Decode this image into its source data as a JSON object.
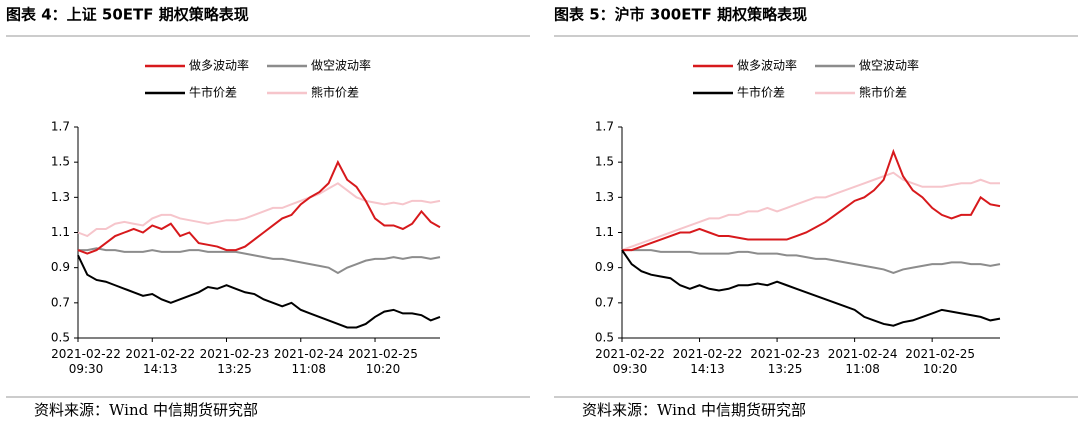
{
  "chart_data": [
    {
      "type": "line",
      "title": "图表 4：上证 50ETF 期权策略表现",
      "source": "资料来源：Wind  中信期货研究部",
      "categories": [
        "2021-02-22\n09:30",
        null,
        null,
        null,
        null,
        null,
        null,
        null,
        "2021-02-22\n14:13",
        null,
        null,
        null,
        null,
        null,
        null,
        null,
        "2021-02-23\n13:25",
        null,
        null,
        null,
        null,
        null,
        null,
        null,
        "2021-02-24\n11:08",
        null,
        null,
        null,
        null,
        null,
        null,
        null,
        "2021-02-25\n10:20",
        null,
        null,
        null,
        null,
        null,
        null,
        null
      ],
      "ylim": [
        0.5,
        1.7
      ],
      "yticks": [
        0.5,
        0.7,
        0.9,
        1.1,
        1.3,
        1.5,
        1.7
      ],
      "series": [
        {
          "name": "做多波动率",
          "color": "#d7191c",
          "values": [
            1.0,
            0.98,
            1.0,
            1.04,
            1.08,
            1.1,
            1.12,
            1.1,
            1.14,
            1.12,
            1.15,
            1.08,
            1.1,
            1.04,
            1.03,
            1.02,
            1.0,
            1.0,
            1.02,
            1.06,
            1.1,
            1.14,
            1.18,
            1.2,
            1.26,
            1.3,
            1.33,
            1.38,
            1.5,
            1.4,
            1.36,
            1.28,
            1.18,
            1.14,
            1.14,
            1.12,
            1.15,
            1.22,
            1.16,
            1.13
          ]
        },
        {
          "name": "做空波动率",
          "color": "#8c8c8c",
          "values": [
            1.0,
            1.0,
            1.01,
            1.0,
            1.0,
            0.99,
            0.99,
            0.99,
            1.0,
            0.99,
            0.99,
            0.99,
            1.0,
            1.0,
            0.99,
            0.99,
            0.99,
            0.99,
            0.98,
            0.97,
            0.96,
            0.95,
            0.95,
            0.94,
            0.93,
            0.92,
            0.91,
            0.9,
            0.87,
            0.9,
            0.92,
            0.94,
            0.95,
            0.95,
            0.96,
            0.95,
            0.96,
            0.96,
            0.95,
            0.96
          ]
        },
        {
          "name": "牛市价差",
          "color": "#000000",
          "values": [
            0.97,
            0.86,
            0.83,
            0.82,
            0.8,
            0.78,
            0.76,
            0.74,
            0.75,
            0.72,
            0.7,
            0.72,
            0.74,
            0.76,
            0.79,
            0.78,
            0.8,
            0.78,
            0.76,
            0.75,
            0.72,
            0.7,
            0.68,
            0.7,
            0.66,
            0.64,
            0.62,
            0.6,
            0.58,
            0.56,
            0.56,
            0.58,
            0.62,
            0.65,
            0.66,
            0.64,
            0.64,
            0.63,
            0.6,
            0.62
          ]
        },
        {
          "name": "熊市价差",
          "color": "#f6c5cb",
          "values": [
            1.1,
            1.08,
            1.12,
            1.12,
            1.15,
            1.16,
            1.15,
            1.14,
            1.18,
            1.2,
            1.2,
            1.18,
            1.17,
            1.16,
            1.15,
            1.16,
            1.17,
            1.17,
            1.18,
            1.2,
            1.22,
            1.24,
            1.24,
            1.26,
            1.28,
            1.3,
            1.32,
            1.35,
            1.38,
            1.34,
            1.3,
            1.28,
            1.27,
            1.26,
            1.27,
            1.26,
            1.28,
            1.28,
            1.27,
            1.28
          ]
        }
      ]
    },
    {
      "type": "line",
      "title": "图表 5：沪市 300ETF 期权策略表现",
      "source": "资料来源：Wind  中信期货研究部",
      "categories": [
        "2021-02-22\n09:30",
        null,
        null,
        null,
        null,
        null,
        null,
        null,
        "2021-02-22\n14:13",
        null,
        null,
        null,
        null,
        null,
        null,
        null,
        "2021-02-23\n13:25",
        null,
        null,
        null,
        null,
        null,
        null,
        null,
        "2021-02-24\n11:08",
        null,
        null,
        null,
        null,
        null,
        null,
        null,
        "2021-02-25\n10:20",
        null,
        null,
        null,
        null,
        null,
        null,
        null
      ],
      "ylim": [
        0.5,
        1.7
      ],
      "yticks": [
        0.5,
        0.7,
        0.9,
        1.1,
        1.3,
        1.5,
        1.7
      ],
      "series": [
        {
          "name": "做多波动率",
          "color": "#d7191c",
          "values": [
            1.0,
            1.0,
            1.02,
            1.04,
            1.06,
            1.08,
            1.1,
            1.1,
            1.12,
            1.1,
            1.08,
            1.08,
            1.07,
            1.06,
            1.06,
            1.06,
            1.06,
            1.06,
            1.08,
            1.1,
            1.13,
            1.16,
            1.2,
            1.24,
            1.28,
            1.3,
            1.34,
            1.4,
            1.56,
            1.42,
            1.34,
            1.3,
            1.24,
            1.2,
            1.18,
            1.2,
            1.2,
            1.3,
            1.26,
            1.25
          ]
        },
        {
          "name": "做空波动率",
          "color": "#8c8c8c",
          "values": [
            1.0,
            1.0,
            1.0,
            1.0,
            0.99,
            0.99,
            0.99,
            0.99,
            0.98,
            0.98,
            0.98,
            0.98,
            0.99,
            0.99,
            0.98,
            0.98,
            0.98,
            0.97,
            0.97,
            0.96,
            0.95,
            0.95,
            0.94,
            0.93,
            0.92,
            0.91,
            0.9,
            0.89,
            0.87,
            0.89,
            0.9,
            0.91,
            0.92,
            0.92,
            0.93,
            0.93,
            0.92,
            0.92,
            0.91,
            0.92
          ]
        },
        {
          "name": "牛市价差",
          "color": "#000000",
          "values": [
            1.0,
            0.92,
            0.88,
            0.86,
            0.85,
            0.84,
            0.8,
            0.78,
            0.8,
            0.78,
            0.77,
            0.78,
            0.8,
            0.8,
            0.81,
            0.8,
            0.82,
            0.8,
            0.78,
            0.76,
            0.74,
            0.72,
            0.7,
            0.68,
            0.66,
            0.62,
            0.6,
            0.58,
            0.57,
            0.59,
            0.6,
            0.62,
            0.64,
            0.66,
            0.65,
            0.64,
            0.63,
            0.62,
            0.6,
            0.61
          ]
        },
        {
          "name": "熊市价差",
          "color": "#f6c5cb",
          "values": [
            1.0,
            1.02,
            1.04,
            1.06,
            1.08,
            1.1,
            1.12,
            1.14,
            1.16,
            1.18,
            1.18,
            1.2,
            1.2,
            1.22,
            1.22,
            1.24,
            1.22,
            1.24,
            1.26,
            1.28,
            1.3,
            1.3,
            1.32,
            1.34,
            1.36,
            1.38,
            1.4,
            1.42,
            1.44,
            1.4,
            1.38,
            1.36,
            1.36,
            1.36,
            1.37,
            1.38,
            1.38,
            1.4,
            1.38,
            1.38
          ]
        }
      ]
    }
  ]
}
